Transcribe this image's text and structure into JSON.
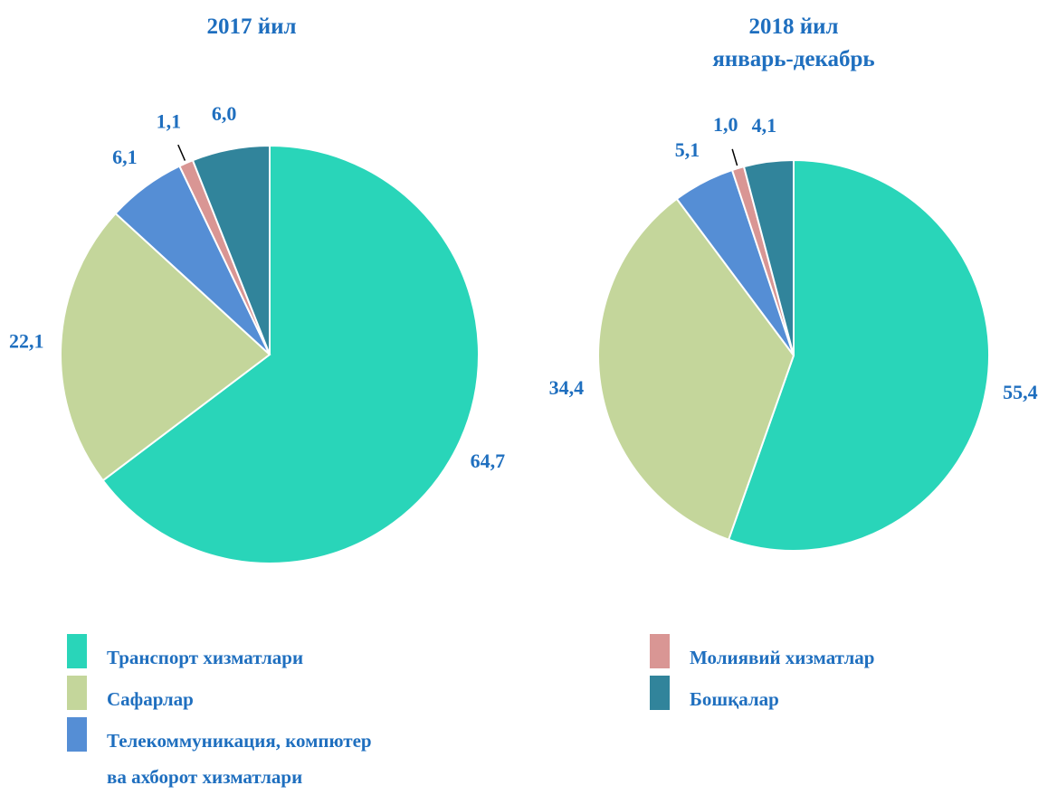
{
  "chart_data": [
    {
      "type": "pie",
      "title": "2017 йил",
      "values": [
        64.7,
        22.1,
        6.1,
        1.1,
        6.0
      ],
      "value_labels": [
        "64,7",
        "22,1",
        "6,1",
        "1,1",
        "6,0"
      ]
    },
    {
      "type": "pie",
      "title": "2018 йил\nянварь-декабрь",
      "values": [
        55.4,
        34.4,
        5.1,
        1.0,
        4.1
      ],
      "value_labels": [
        "55,4",
        "34,4",
        "5,1",
        "1,0",
        "4,1"
      ]
    }
  ],
  "legend": {
    "labels": [
      "Транспорт  хизматлари",
      "Сафарлар",
      "Телекоммуникация, компютер ва ахборот хизматлари",
      "Молиявий хизматлар",
      "Бошқалар"
    ],
    "colors": [
      "#29d5b9",
      "#c4d69b",
      "#558ed5",
      "#d99694",
      "#31849b"
    ]
  }
}
